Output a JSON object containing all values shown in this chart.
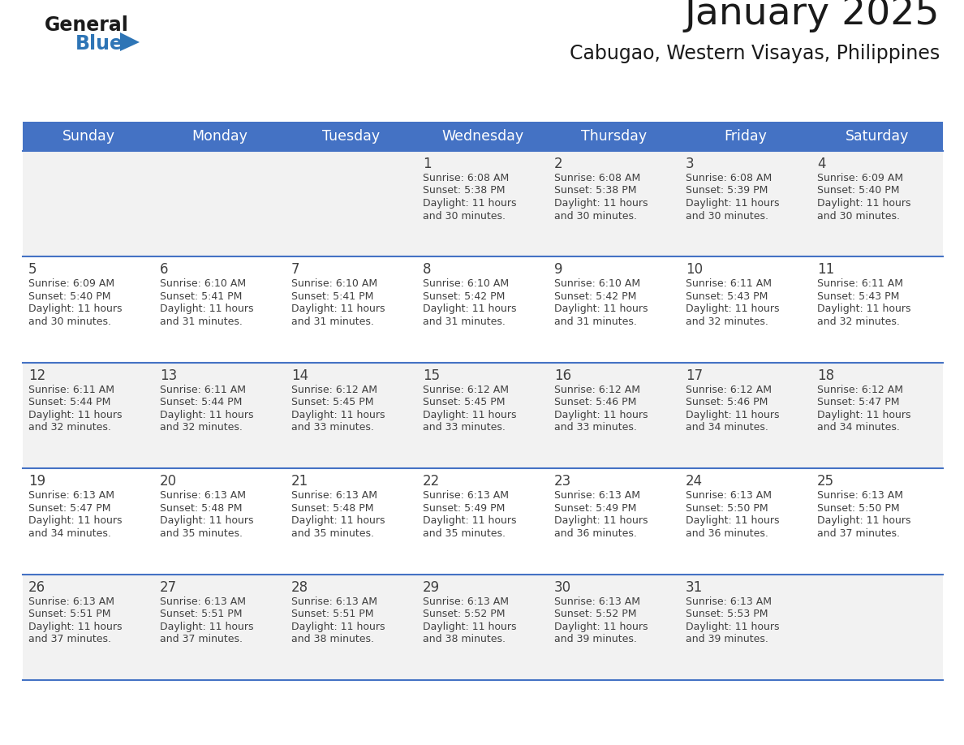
{
  "title": "January 2025",
  "subtitle": "Cabugao, Western Visayas, Philippines",
  "header_bg": "#4472C4",
  "header_text_color": "#FFFFFF",
  "day_names": [
    "Sunday",
    "Monday",
    "Tuesday",
    "Wednesday",
    "Thursday",
    "Friday",
    "Saturday"
  ],
  "row_bg": [
    "#F2F2F2",
    "#FFFFFF",
    "#F2F2F2",
    "#FFFFFF",
    "#F2F2F2"
  ],
  "cell_border_color": "#4472C4",
  "date_text_color": "#404040",
  "info_text_color": "#404040",
  "title_color": "#1a1a1a",
  "subtitle_color": "#1a1a1a",
  "general_text_color": "#1a1a1a",
  "blue_logo_color": "#2E75B6",
  "calendar": [
    [
      {
        "day": "",
        "sunrise": "",
        "sunset": "",
        "daylight_h": "",
        "daylight_m": ""
      },
      {
        "day": "",
        "sunrise": "",
        "sunset": "",
        "daylight_h": "",
        "daylight_m": ""
      },
      {
        "day": "",
        "sunrise": "",
        "sunset": "",
        "daylight_h": "",
        "daylight_m": ""
      },
      {
        "day": "1",
        "sunrise": "6:08 AM",
        "sunset": "5:38 PM",
        "daylight_h": "11 hours",
        "daylight_m": "and 30 minutes."
      },
      {
        "day": "2",
        "sunrise": "6:08 AM",
        "sunset": "5:38 PM",
        "daylight_h": "11 hours",
        "daylight_m": "and 30 minutes."
      },
      {
        "day": "3",
        "sunrise": "6:08 AM",
        "sunset": "5:39 PM",
        "daylight_h": "11 hours",
        "daylight_m": "and 30 minutes."
      },
      {
        "day": "4",
        "sunrise": "6:09 AM",
        "sunset": "5:40 PM",
        "daylight_h": "11 hours",
        "daylight_m": "and 30 minutes."
      }
    ],
    [
      {
        "day": "5",
        "sunrise": "6:09 AM",
        "sunset": "5:40 PM",
        "daylight_h": "11 hours",
        "daylight_m": "and 30 minutes."
      },
      {
        "day": "6",
        "sunrise": "6:10 AM",
        "sunset": "5:41 PM",
        "daylight_h": "11 hours",
        "daylight_m": "and 31 minutes."
      },
      {
        "day": "7",
        "sunrise": "6:10 AM",
        "sunset": "5:41 PM",
        "daylight_h": "11 hours",
        "daylight_m": "and 31 minutes."
      },
      {
        "day": "8",
        "sunrise": "6:10 AM",
        "sunset": "5:42 PM",
        "daylight_h": "11 hours",
        "daylight_m": "and 31 minutes."
      },
      {
        "day": "9",
        "sunrise": "6:10 AM",
        "sunset": "5:42 PM",
        "daylight_h": "11 hours",
        "daylight_m": "and 31 minutes."
      },
      {
        "day": "10",
        "sunrise": "6:11 AM",
        "sunset": "5:43 PM",
        "daylight_h": "11 hours",
        "daylight_m": "and 32 minutes."
      },
      {
        "day": "11",
        "sunrise": "6:11 AM",
        "sunset": "5:43 PM",
        "daylight_h": "11 hours",
        "daylight_m": "and 32 minutes."
      }
    ],
    [
      {
        "day": "12",
        "sunrise": "6:11 AM",
        "sunset": "5:44 PM",
        "daylight_h": "11 hours",
        "daylight_m": "and 32 minutes."
      },
      {
        "day": "13",
        "sunrise": "6:11 AM",
        "sunset": "5:44 PM",
        "daylight_h": "11 hours",
        "daylight_m": "and 32 minutes."
      },
      {
        "day": "14",
        "sunrise": "6:12 AM",
        "sunset": "5:45 PM",
        "daylight_h": "11 hours",
        "daylight_m": "and 33 minutes."
      },
      {
        "day": "15",
        "sunrise": "6:12 AM",
        "sunset": "5:45 PM",
        "daylight_h": "11 hours",
        "daylight_m": "and 33 minutes."
      },
      {
        "day": "16",
        "sunrise": "6:12 AM",
        "sunset": "5:46 PM",
        "daylight_h": "11 hours",
        "daylight_m": "and 33 minutes."
      },
      {
        "day": "17",
        "sunrise": "6:12 AM",
        "sunset": "5:46 PM",
        "daylight_h": "11 hours",
        "daylight_m": "and 34 minutes."
      },
      {
        "day": "18",
        "sunrise": "6:12 AM",
        "sunset": "5:47 PM",
        "daylight_h": "11 hours",
        "daylight_m": "and 34 minutes."
      }
    ],
    [
      {
        "day": "19",
        "sunrise": "6:13 AM",
        "sunset": "5:47 PM",
        "daylight_h": "11 hours",
        "daylight_m": "and 34 minutes."
      },
      {
        "day": "20",
        "sunrise": "6:13 AM",
        "sunset": "5:48 PM",
        "daylight_h": "11 hours",
        "daylight_m": "and 35 minutes."
      },
      {
        "day": "21",
        "sunrise": "6:13 AM",
        "sunset": "5:48 PM",
        "daylight_h": "11 hours",
        "daylight_m": "and 35 minutes."
      },
      {
        "day": "22",
        "sunrise": "6:13 AM",
        "sunset": "5:49 PM",
        "daylight_h": "11 hours",
        "daylight_m": "and 35 minutes."
      },
      {
        "day": "23",
        "sunrise": "6:13 AM",
        "sunset": "5:49 PM",
        "daylight_h": "11 hours",
        "daylight_m": "and 36 minutes."
      },
      {
        "day": "24",
        "sunrise": "6:13 AM",
        "sunset": "5:50 PM",
        "daylight_h": "11 hours",
        "daylight_m": "and 36 minutes."
      },
      {
        "day": "25",
        "sunrise": "6:13 AM",
        "sunset": "5:50 PM",
        "daylight_h": "11 hours",
        "daylight_m": "and 37 minutes."
      }
    ],
    [
      {
        "day": "26",
        "sunrise": "6:13 AM",
        "sunset": "5:51 PM",
        "daylight_h": "11 hours",
        "daylight_m": "and 37 minutes."
      },
      {
        "day": "27",
        "sunrise": "6:13 AM",
        "sunset": "5:51 PM",
        "daylight_h": "11 hours",
        "daylight_m": "and 37 minutes."
      },
      {
        "day": "28",
        "sunrise": "6:13 AM",
        "sunset": "5:51 PM",
        "daylight_h": "11 hours",
        "daylight_m": "and 38 minutes."
      },
      {
        "day": "29",
        "sunrise": "6:13 AM",
        "sunset": "5:52 PM",
        "daylight_h": "11 hours",
        "daylight_m": "and 38 minutes."
      },
      {
        "day": "30",
        "sunrise": "6:13 AM",
        "sunset": "5:52 PM",
        "daylight_h": "11 hours",
        "daylight_m": "and 39 minutes."
      },
      {
        "day": "31",
        "sunrise": "6:13 AM",
        "sunset": "5:53 PM",
        "daylight_h": "11 hours",
        "daylight_m": "and 39 minutes."
      },
      {
        "day": "",
        "sunrise": "",
        "sunset": "",
        "daylight_h": "",
        "daylight_m": ""
      }
    ]
  ],
  "logo_general_color": "#1a1a1a",
  "logo_blue_color": "#2E75B6",
  "logo_triangle_color": "#2E75B6"
}
